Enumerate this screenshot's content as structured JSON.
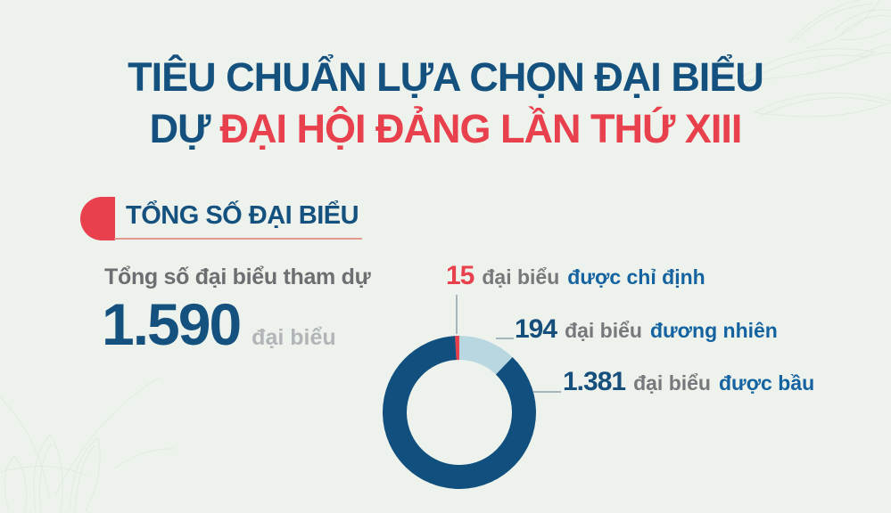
{
  "page": {
    "background_color": "#edf3ec",
    "decor": [
      {
        "icon": "lotus-watermark-top-right"
      },
      {
        "icon": "lotus-watermark-bottom-left"
      }
    ]
  },
  "title": {
    "line1": "TIÊU CHUẨN LỰA CHỌN ĐẠI BIỂU",
    "line2_prefix": "DỰ",
    "line2_highlight": "ĐẠI HỘI ĐẢNG LẦN THỨ XIII",
    "line1_color": "#15517f",
    "highlight_color": "#e8414d"
  },
  "section": {
    "heading": "TỔNG SỐ ĐẠI BIỂU",
    "marker_color": "#e8414d",
    "underline_color": "#e6988e"
  },
  "total": {
    "label": "Tổng số đại biểu tham dự",
    "value": "1.590",
    "unit": "đại biểu"
  },
  "chart_data": {
    "type": "pie",
    "donut": true,
    "title": "Tổng số đại biểu tham dự",
    "total": 1590,
    "legend_position": "right-callouts",
    "slices": [
      {
        "value": 15,
        "display": "15",
        "unit": "đại biểu",
        "label": "được chỉ định",
        "color": "#e8414d"
      },
      {
        "value": 194,
        "display": "194",
        "unit": "đại biểu",
        "label": "đương nhiên",
        "color": "#b9d7e0"
      },
      {
        "value": 1381,
        "display": "1.381",
        "unit": "đại biểu",
        "label": "được bầu",
        "color": "#11507e"
      }
    ],
    "note": "red sliver ends at 12 o'clock; slices run clockwise: red, light blue, dark blue"
  },
  "colors": {
    "dark_blue": "#15517f",
    "red": "#e8414d",
    "light_blue": "#b9d7e0",
    "gray_text": "#6d6e71",
    "light_gray_text": "#b2b5b7",
    "leader_line": "#a6b6ba"
  }
}
